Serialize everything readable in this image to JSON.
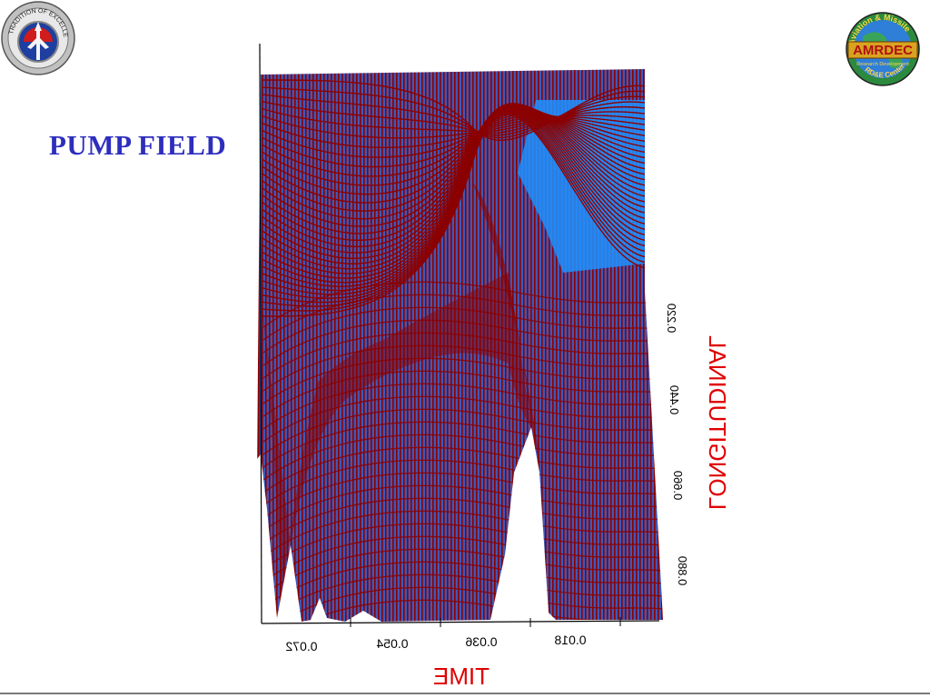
{
  "slide": {
    "title": "PUMP FIELD"
  },
  "logos": {
    "left": {
      "icon": "tradition-of-excellence-seal-icon",
      "text": "TRADITION OF EXCELLENCE"
    },
    "right": {
      "icon": "amrdec-globe-logo-icon",
      "top_text": "Aviation & Missile",
      "main_text": "AMRDEC",
      "sub_text": "Research Development",
      "bottom_text": "RD&E Center"
    }
  },
  "chart_data": {
    "type": "surface",
    "title": "",
    "xlabel": "TIME",
    "ylabel": "LONGITUDINAL",
    "x_ticks": [
      "0.072",
      "0.054",
      "0.036",
      "0.018"
    ],
    "y_ticks": [
      "0.220",
      "0.440",
      "0.660",
      "0.880"
    ],
    "mirrored": true,
    "colors": {
      "surface": "#3f57b8",
      "mesh": "#8b0000",
      "highlight": "#1e90ff",
      "axis_label": "#e00000",
      "axes": "#000000"
    }
  }
}
